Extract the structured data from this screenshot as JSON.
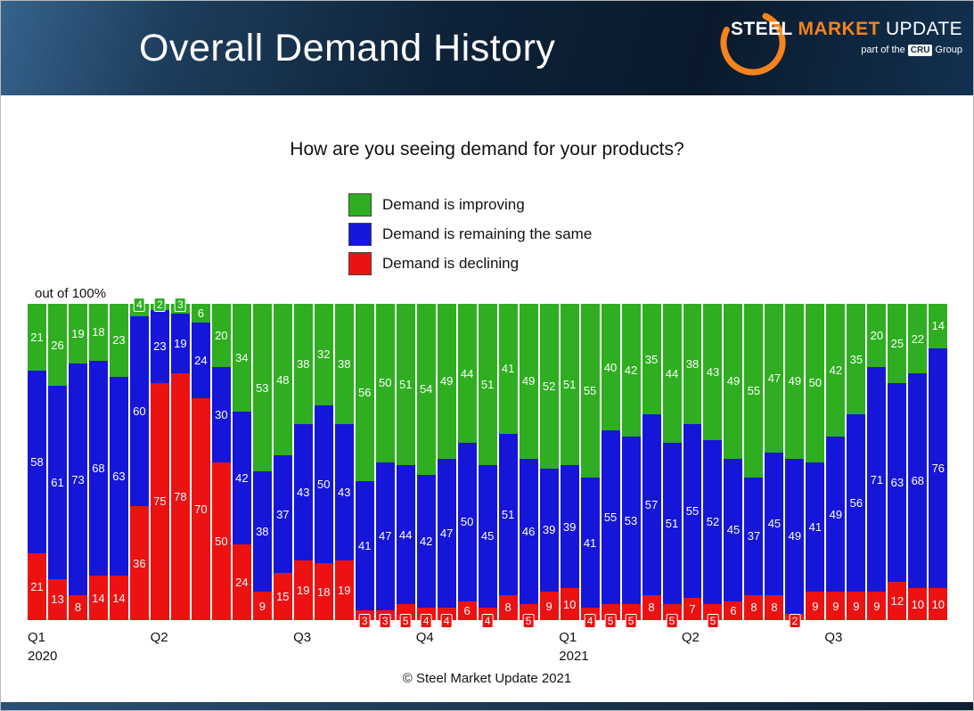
{
  "header": {
    "title": "Overall Demand History",
    "logo": {
      "steel": "STEEL",
      "market": "MARKET",
      "update": "UPDATE",
      "tagline_prefix": "part of the",
      "cru": "CRU",
      "tagline_suffix": "Group"
    }
  },
  "chart": {
    "question": "How are you seeing demand for your products?",
    "axis_note": "out of 100%",
    "footer": "© Steel Market Update 2021"
  },
  "chart_data": {
    "type": "bar",
    "stacked": true,
    "unit": "percent of respondents",
    "title": "How are you seeing demand for your products?",
    "ylim": [
      0,
      100
    ],
    "legend_position": "top-center",
    "grid": false,
    "series": [
      {
        "key": "improving",
        "name": "Demand is improving",
        "color": "#2EAE20",
        "values": [
          21,
          26,
          19,
          18,
          23,
          4,
          2,
          3,
          6,
          20,
          34,
          53,
          48,
          38,
          32,
          38,
          56,
          50,
          51,
          54,
          49,
          44,
          51,
          41,
          49,
          52,
          51,
          55,
          40,
          42,
          35,
          44,
          38,
          43,
          49,
          55,
          47,
          49,
          50,
          42,
          35,
          20,
          25,
          22,
          14
        ]
      },
      {
        "key": "same",
        "name": "Demand is remaining the same",
        "color": "#1616D8",
        "values": [
          58,
          61,
          73,
          68,
          63,
          60,
          23,
          19,
          24,
          30,
          42,
          38,
          37,
          43,
          50,
          43,
          41,
          47,
          44,
          42,
          47,
          50,
          45,
          51,
          46,
          39,
          39,
          41,
          55,
          53,
          57,
          51,
          55,
          52,
          45,
          37,
          45,
          49,
          41,
          49,
          56,
          71,
          63,
          68,
          76
        ]
      },
      {
        "key": "declining",
        "name": "Demand is declining",
        "color": "#EC1212",
        "values": [
          21,
          13,
          8,
          14,
          14,
          36,
          75,
          78,
          70,
          50,
          24,
          9,
          15,
          19,
          18,
          19,
          3,
          3,
          5,
          4,
          4,
          6,
          4,
          8,
          5,
          9,
          10,
          4,
          5,
          5,
          8,
          5,
          7,
          5,
          6,
          8,
          8,
          2,
          9,
          9,
          9,
          9,
          12,
          10,
          10
        ]
      }
    ],
    "x_ticks": [
      {
        "bar_index": 0,
        "lines": [
          "Q1",
          "2020"
        ]
      },
      {
        "bar_index": 6,
        "lines": [
          "Q2"
        ]
      },
      {
        "bar_index": 13,
        "lines": [
          "Q3"
        ]
      },
      {
        "bar_index": 19,
        "lines": [
          "Q4"
        ]
      },
      {
        "bar_index": 26,
        "lines": [
          "Q1",
          "2021"
        ]
      },
      {
        "bar_index": 32,
        "lines": [
          "Q2"
        ]
      },
      {
        "bar_index": 39,
        "lines": [
          "Q3"
        ]
      }
    ]
  }
}
